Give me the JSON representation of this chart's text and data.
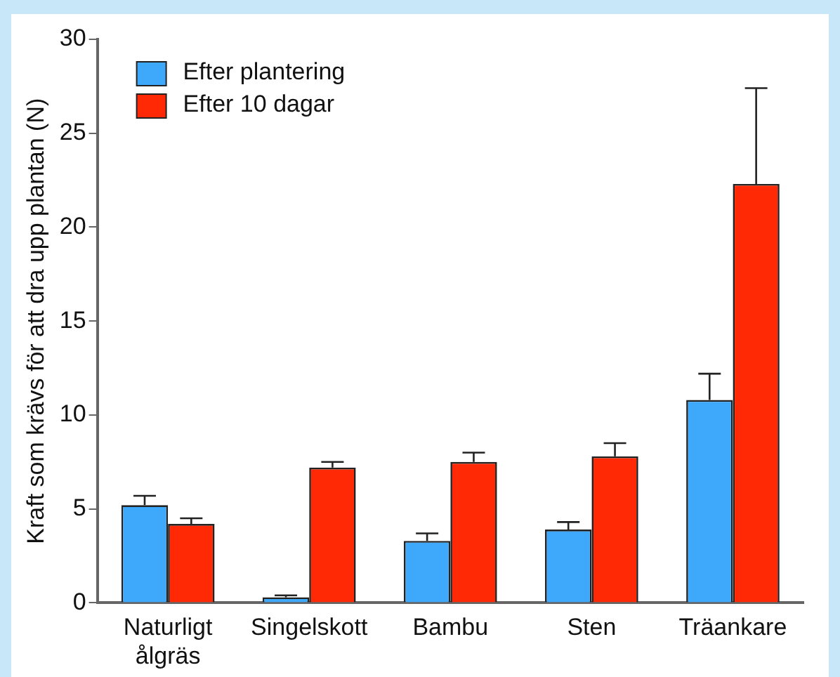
{
  "chart_data": {
    "type": "bar",
    "ylabel": "Kraft som krävs för att dra upp plantan (N)",
    "categories": [
      "Naturligt ålgräs",
      "Singelskott",
      "Bambu",
      "Sten",
      "Träankare"
    ],
    "series": [
      {
        "name": "Efter plantering",
        "color": "#3ea8fb",
        "values": [
          5.2,
          0.3,
          3.3,
          3.9,
          10.8
        ],
        "errors": [
          0.5,
          0.1,
          0.4,
          0.4,
          1.4
        ]
      },
      {
        "name": "Efter 10 dagar",
        "color": "#ff2a05",
        "values": [
          4.2,
          7.2,
          7.5,
          7.8,
          22.3
        ],
        "errors": [
          0.3,
          0.3,
          0.5,
          0.7,
          5.1
        ]
      }
    ],
    "ylim": [
      0,
      30
    ],
    "yticks": [
      0,
      5,
      10,
      15,
      20,
      25,
      30
    ],
    "grid": false,
    "legend": "top left"
  }
}
